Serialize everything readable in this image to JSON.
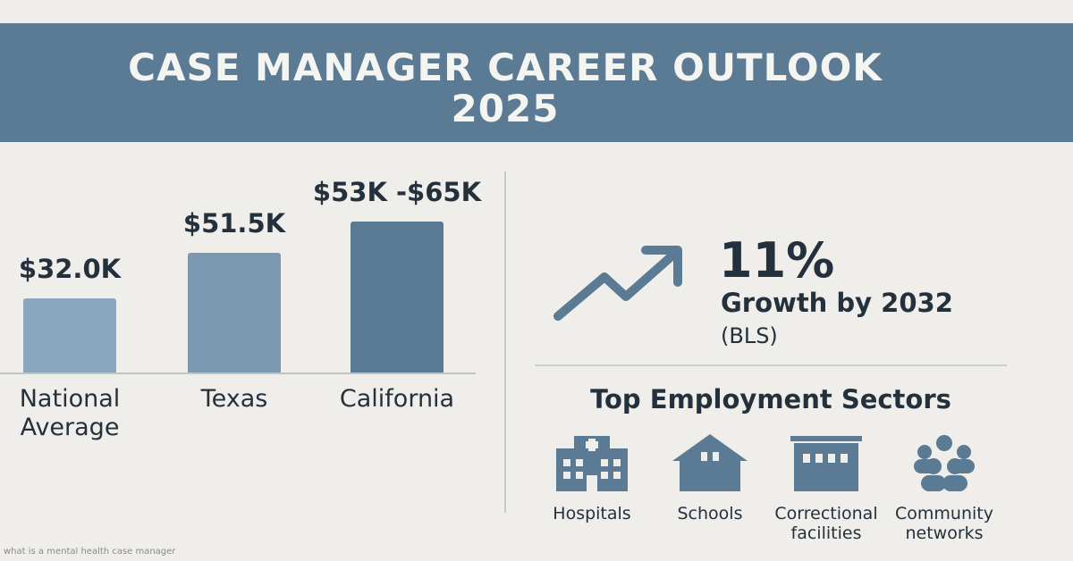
{
  "header": {
    "title_line1": "CASE MANAGER CAREER OUTLOOK",
    "title_line2": "2025"
  },
  "chart_data": {
    "type": "bar",
    "categories": [
      "National\nAverage",
      "Texas",
      "California"
    ],
    "values": [
      32.0,
      51.5,
      65
    ],
    "value_labels": [
      "$32.0K",
      "$51.5K",
      "$53K -$65K"
    ],
    "ylim": [
      0,
      100
    ],
    "colors": [
      "#8aa7bd",
      "#7b9ab2",
      "#5b7a93"
    ]
  },
  "growth": {
    "value": "11%",
    "text": "Growth by 2032",
    "source": "(BLS)",
    "icon": "trend-up-arrow-icon"
  },
  "sectors": {
    "title": "Top Employment Sectors",
    "items": [
      {
        "label": "Hospitals",
        "icon": "hospital-icon"
      },
      {
        "label": "Schools",
        "icon": "school-icon"
      },
      {
        "label": "Correctional\nfacilities",
        "icon": "prison-icon"
      },
      {
        "label": "Community\nnetworks",
        "icon": "community-icon"
      }
    ]
  },
  "footnote": "what is a mental health case manager"
}
